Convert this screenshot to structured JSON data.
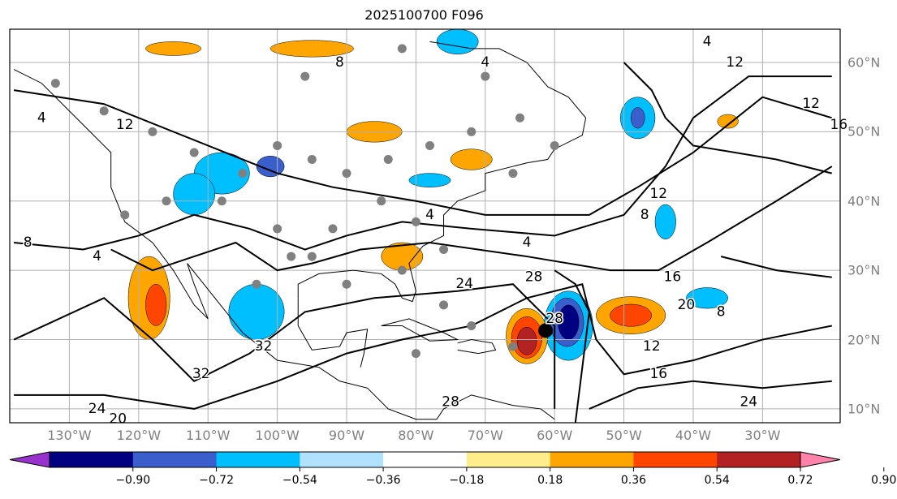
{
  "title": "2025100700 F096",
  "map": {
    "lon_range": [
      -138.6,
      -18.8
    ],
    "lat_range": [
      8.0,
      64.8
    ],
    "lon_ticks": [
      {
        "lon": -130,
        "label": "130°W"
      },
      {
        "lon": -120,
        "label": "120°W"
      },
      {
        "lon": -110,
        "label": "110°W"
      },
      {
        "lon": -100,
        "label": "100°W"
      },
      {
        "lon": -90,
        "label": "90°W"
      },
      {
        "lon": -80,
        "label": "80°W"
      },
      {
        "lon": -70,
        "label": "70°W"
      },
      {
        "lon": -60,
        "label": "60°W"
      },
      {
        "lon": -50,
        "label": "50°W"
      },
      {
        "lon": -40,
        "label": "40°W"
      },
      {
        "lon": -30,
        "label": "30°W"
      }
    ],
    "lat_ticks": [
      {
        "lat": 60,
        "label": "60°N"
      },
      {
        "lat": 50,
        "label": "50°N"
      },
      {
        "lat": 40,
        "label": "40°N"
      },
      {
        "lat": 30,
        "label": "30°N"
      },
      {
        "lat": 20,
        "label": "20°N"
      },
      {
        "lat": 10,
        "label": "10°N"
      }
    ],
    "contour_labels": [
      {
        "text": "4",
        "lon": -134,
        "lat": 52
      },
      {
        "text": "12",
        "lon": -122,
        "lat": 51
      },
      {
        "text": "8",
        "lon": -136,
        "lat": 34
      },
      {
        "text": "4",
        "lon": -126,
        "lat": 32
      },
      {
        "text": "4",
        "lon": -78,
        "lat": 38
      },
      {
        "text": "4",
        "lon": -64,
        "lat": 34
      },
      {
        "text": "8",
        "lon": -91,
        "lat": 60
      },
      {
        "text": "4",
        "lon": -70,
        "lat": 60
      },
      {
        "text": "12",
        "lon": -34,
        "lat": 60
      },
      {
        "text": "4",
        "lon": -38,
        "lat": 63
      },
      {
        "text": "12",
        "lon": -23,
        "lat": 54
      },
      {
        "text": "16",
        "lon": -19,
        "lat": 51
      },
      {
        "text": "12",
        "lon": -45,
        "lat": 41
      },
      {
        "text": "8",
        "lon": -47,
        "lat": 38
      },
      {
        "text": "16",
        "lon": -43,
        "lat": 29
      },
      {
        "text": "8",
        "lon": -36,
        "lat": 24
      },
      {
        "text": "20",
        "lon": -41,
        "lat": 25
      },
      {
        "text": "12",
        "lon": -46,
        "lat": 19
      },
      {
        "text": "16",
        "lon": -45,
        "lat": 15
      },
      {
        "text": "24",
        "lon": -32,
        "lat": 11
      },
      {
        "text": "24",
        "lon": -73,
        "lat": 28
      },
      {
        "text": "28",
        "lon": -63,
        "lat": 29
      },
      {
        "text": "28",
        "lon": -60,
        "lat": 23
      },
      {
        "text": "32",
        "lon": -102,
        "lat": 19
      },
      {
        "text": "32",
        "lon": -111,
        "lat": 15
      },
      {
        "text": "28",
        "lon": -75,
        "lat": 11
      },
      {
        "text": "24",
        "lon": -126,
        "lat": 10
      },
      {
        "text": "20",
        "lon": -123,
        "lat": 8.5
      }
    ],
    "center_marker": {
      "lon": -61.3,
      "lat": 21.3
    }
  },
  "colorbar": {
    "colors": [
      "#9932cc",
      "#000080",
      "#3a5fcd",
      "#00bfff",
      "#b0e2ff",
      "#ffffff",
      "#ffec8b",
      "#ffa500",
      "#ff4500",
      "#b22222",
      "#ff82ab"
    ],
    "ticks": [
      "−0.90",
      "−0.72",
      "−0.54",
      "−0.36",
      "−0.18",
      "0.18",
      "0.36",
      "0.54",
      "0.72",
      "0.90"
    ]
  }
}
